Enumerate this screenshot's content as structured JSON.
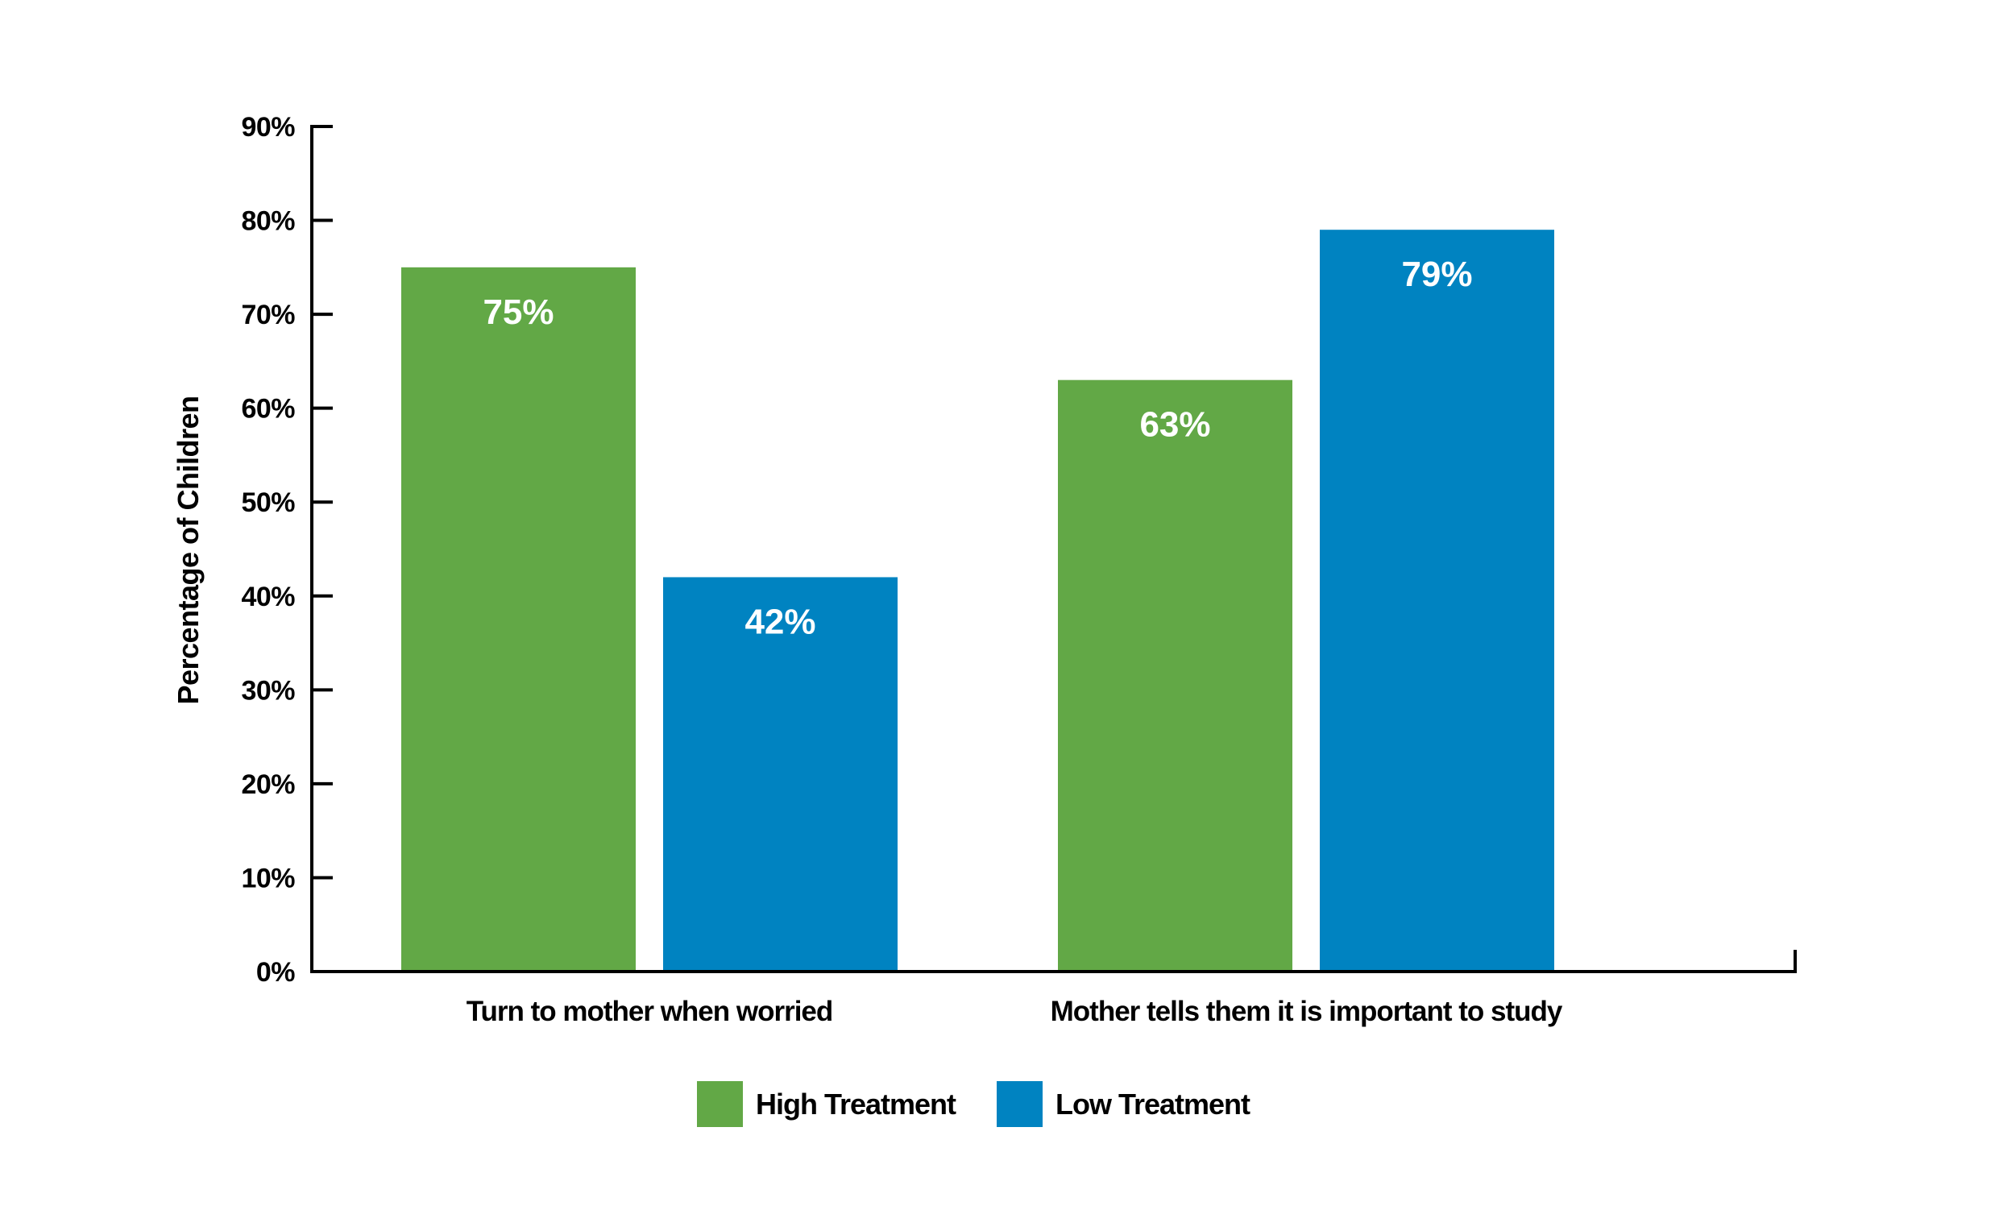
{
  "chart_data": {
    "type": "bar",
    "title": "",
    "xlabel": "",
    "ylabel": "Percentage of Children",
    "ylim": [
      0,
      90
    ],
    "y_ticks": [
      "0%",
      "10%",
      "20%",
      "30%",
      "40%",
      "50%",
      "60%",
      "70%",
      "80%",
      "90%"
    ],
    "categories": [
      "Turn to mother when worried",
      "Mother tells them it is important to study"
    ],
    "series": [
      {
        "name": "High Treatment",
        "color": "#62a846",
        "values": [
          75,
          63
        ],
        "labels": [
          "75%",
          "63%"
        ]
      },
      {
        "name": "Low Treatment",
        "color": "#0083c1",
        "values": [
          42,
          79
        ],
        "labels": [
          "42%",
          "79%"
        ]
      }
    ],
    "grid": false,
    "legend_position": "bottom-center"
  }
}
